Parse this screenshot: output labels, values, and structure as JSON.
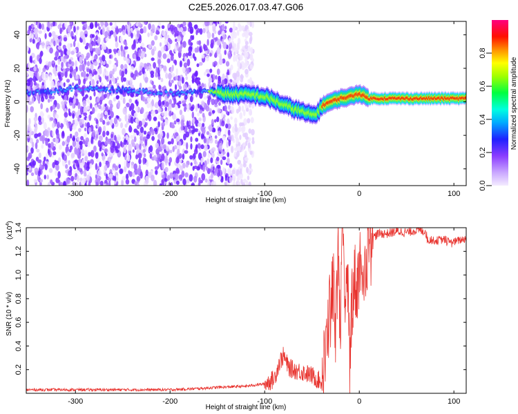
{
  "title": "C2E5.2026.017.03.47.G06",
  "chart_data": [
    {
      "type": "heatmap",
      "xlabel": "Height of straight line (km)",
      "ylabel": "Frequency (Hz)",
      "xlim": [
        -352,
        113
      ],
      "ylim": [
        -50,
        48
      ],
      "xticks": [
        -300,
        -200,
        -100,
        0,
        100
      ],
      "yticks": [
        -40,
        -20,
        0,
        20,
        40
      ],
      "colorbar": {
        "label": "Normalized spectral amplitude",
        "range": [
          0,
          1
        ],
        "ticks": [
          "0.0",
          "0.2",
          "0.4",
          "0.6",
          "0.8"
        ],
        "tick_values": [
          0.0,
          0.2,
          0.4,
          0.6,
          0.8
        ],
        "colors": [
          "#f0e8ff",
          "#8a3cff",
          "#2020ff",
          "#00e5ff",
          "#00ff40",
          "#80ff00",
          "#ffff00",
          "#ff8000",
          "#ff0000",
          "#ff00a0"
        ]
      },
      "ridge": {
        "x": [
          -352,
          -300,
          -250,
          -200,
          -160,
          -150,
          -130,
          -110,
          -100,
          -90,
          -80,
          -70,
          -60,
          -50,
          -45,
          -40,
          -35,
          -30,
          -20,
          -10,
          0,
          10,
          30,
          60,
          113
        ],
        "y": [
          5,
          8,
          7,
          5,
          6,
          5,
          4.5,
          4,
          3,
          1,
          -2,
          -4,
          -6,
          -8,
          -7,
          -3,
          -1,
          0,
          2,
          3,
          5,
          2,
          2,
          2,
          2
        ]
      }
    },
    {
      "type": "line",
      "xlabel": "Height of straight line (km)",
      "ylabel": "SNR (10 * v/v)",
      "scale_label": "(x10",
      "scale_exp": "4",
      "scale_suffix": ")",
      "xlim": [
        -352,
        113
      ],
      "ylim": [
        0,
        1.4
      ],
      "xticks": [
        -300,
        -200,
        -100,
        0,
        100
      ],
      "yticks": [
        0.2,
        0.4,
        0.6,
        0.8,
        1.0,
        1.2,
        1.4
      ],
      "ytick_labels": [
        "0.2",
        "0.4",
        "0.6",
        "0.8",
        "1.0",
        "1.2",
        "1.4"
      ],
      "line_color": "#e8332e",
      "series": [
        {
          "x": [
            -352,
            -300,
            -250,
            -200,
            -170,
            -150,
            -120,
            -100,
            -90,
            -85,
            -80,
            -75,
            -70,
            -60,
            -50,
            -45,
            -40,
            -38,
            -35,
            -33,
            -30,
            -28,
            -25,
            -22,
            -20,
            -18,
            -15,
            -12,
            -10,
            -8,
            -5,
            -2,
            0,
            5,
            10,
            15,
            20,
            30,
            40,
            50,
            60,
            70,
            72,
            80,
            90,
            100,
            113
          ],
          "y": [
            0.03,
            0.03,
            0.03,
            0.03,
            0.04,
            0.05,
            0.06,
            0.08,
            0.12,
            0.25,
            0.32,
            0.22,
            0.2,
            0.18,
            0.15,
            0.12,
            0.1,
            0.18,
            0.35,
            0.6,
            0.7,
            0.9,
            0.6,
            1.2,
            0.4,
            1.25,
            0.7,
            0.95,
            0.15,
            0.8,
            0.95,
            0.9,
            1.1,
            1.05,
            1.2,
            1.32,
            1.35,
            1.35,
            1.37,
            1.36,
            1.38,
            1.37,
            1.3,
            1.29,
            1.3,
            1.28,
            1.31
          ]
        }
      ]
    }
  ]
}
